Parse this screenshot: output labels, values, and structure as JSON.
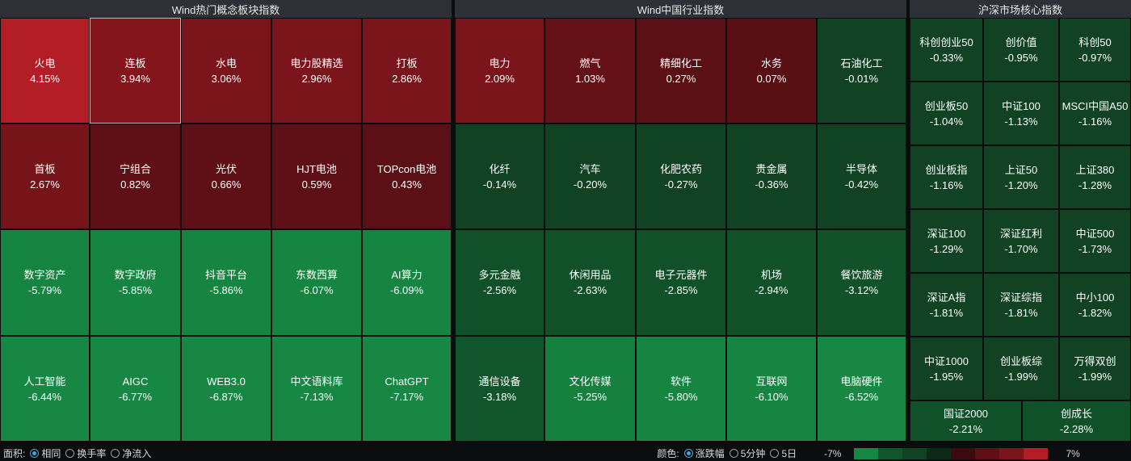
{
  "panels": [
    {
      "title": "Wind热门概念板块指数",
      "tiles": [
        {
          "name": "火电",
          "pct": "4.15%",
          "color": "#b31d25"
        },
        {
          "name": "连板",
          "pct": "3.94%",
          "color": "#84151c",
          "selected": true
        },
        {
          "name": "水电",
          "pct": "3.06%",
          "color": "#7a151b"
        },
        {
          "name": "电力股精选",
          "pct": "2.96%",
          "color": "#7a151b"
        },
        {
          "name": "打板",
          "pct": "2.86%",
          "color": "#7a151b"
        },
        {
          "name": "首板",
          "pct": "2.67%",
          "color": "#761419"
        },
        {
          "name": "宁组合",
          "pct": "0.82%",
          "color": "#5e1016"
        },
        {
          "name": "光伏",
          "pct": "0.66%",
          "color": "#5e1016"
        },
        {
          "name": "HJT电池",
          "pct": "0.59%",
          "color": "#5e1016"
        },
        {
          "name": "TOPcon电池",
          "pct": "0.43%",
          "color": "#5c1015"
        },
        {
          "name": "数字资产",
          "pct": "-5.79%",
          "color": "#168541"
        },
        {
          "name": "数字政府",
          "pct": "-5.85%",
          "color": "#168541"
        },
        {
          "name": "抖音平台",
          "pct": "-5.86%",
          "color": "#168541"
        },
        {
          "name": "东数西算",
          "pct": "-6.07%",
          "color": "#168541"
        },
        {
          "name": "AI算力",
          "pct": "-6.09%",
          "color": "#168541"
        },
        {
          "name": "人工智能",
          "pct": "-6.44%",
          "color": "#178843"
        },
        {
          "name": "AIGC",
          "pct": "-6.77%",
          "color": "#178843"
        },
        {
          "name": "WEB3.0",
          "pct": "-6.87%",
          "color": "#178843"
        },
        {
          "name": "中文语料库",
          "pct": "-7.13%",
          "color": "#178843"
        },
        {
          "name": "ChatGPT",
          "pct": "-7.17%",
          "color": "#178843"
        }
      ]
    },
    {
      "title": "Wind中国行业指数",
      "tiles": [
        {
          "name": "电力",
          "pct": "2.09%",
          "color": "#7a151b"
        },
        {
          "name": "燃气",
          "pct": "1.03%",
          "color": "#641117"
        },
        {
          "name": "精细化工",
          "pct": "0.27%",
          "color": "#5a1014"
        },
        {
          "name": "水务",
          "pct": "0.07%",
          "color": "#581014"
        },
        {
          "name": "石油化工",
          "pct": "-0.01%",
          "color": "#104223"
        },
        {
          "name": "化纤",
          "pct": "-0.14%",
          "color": "#104223"
        },
        {
          "name": "汽车",
          "pct": "-0.20%",
          "color": "#104223"
        },
        {
          "name": "化肥农药",
          "pct": "-0.27%",
          "color": "#104223"
        },
        {
          "name": "贵金属",
          "pct": "-0.36%",
          "color": "#104223"
        },
        {
          "name": "半导体",
          "pct": "-0.42%",
          "color": "#104223"
        },
        {
          "name": "多元金融",
          "pct": "-2.56%",
          "color": "#10512a"
        },
        {
          "name": "休闲用品",
          "pct": "-2.63%",
          "color": "#10512a"
        },
        {
          "name": "电子元器件",
          "pct": "-2.85%",
          "color": "#10512a"
        },
        {
          "name": "机场",
          "pct": "-2.94%",
          "color": "#10512a"
        },
        {
          "name": "餐饮旅游",
          "pct": "-3.12%",
          "color": "#11522b"
        },
        {
          "name": "通信设备",
          "pct": "-3.18%",
          "color": "#11552c"
        },
        {
          "name": "文化传媒",
          "pct": "-5.25%",
          "color": "#16803f"
        },
        {
          "name": "软件",
          "pct": "-5.80%",
          "color": "#168541"
        },
        {
          "name": "互联网",
          "pct": "-6.10%",
          "color": "#168541"
        },
        {
          "name": "电脑硬件",
          "pct": "-6.52%",
          "color": "#178843"
        }
      ]
    },
    {
      "title": "沪深市场核心指数",
      "tiles": [
        {
          "name": "科创创业50",
          "pct": "-0.33%",
          "color": "#104223"
        },
        {
          "name": "创价值",
          "pct": "-0.95%",
          "color": "#104223"
        },
        {
          "name": "科创50",
          "pct": "-0.97%",
          "color": "#104223"
        },
        {
          "name": "创业板50",
          "pct": "-1.04%",
          "color": "#104223"
        },
        {
          "name": "中证100",
          "pct": "-1.13%",
          "color": "#104223"
        },
        {
          "name": "MSCI中国A50",
          "pct": "-1.16%",
          "color": "#104223"
        },
        {
          "name": "创业板指",
          "pct": "-1.16%",
          "color": "#104223"
        },
        {
          "name": "上证50",
          "pct": "-1.20%",
          "color": "#104223"
        },
        {
          "name": "上证380",
          "pct": "-1.28%",
          "color": "#104223"
        },
        {
          "name": "深证100",
          "pct": "-1.29%",
          "color": "#104223"
        },
        {
          "name": "深证红利",
          "pct": "-1.70%",
          "color": "#104223"
        },
        {
          "name": "中证500",
          "pct": "-1.73%",
          "color": "#104223"
        },
        {
          "name": "深证A指",
          "pct": "-1.81%",
          "color": "#104223"
        },
        {
          "name": "深证综指",
          "pct": "-1.81%",
          "color": "#104223"
        },
        {
          "name": "中小100",
          "pct": "-1.82%",
          "color": "#104223"
        },
        {
          "name": "中证1000",
          "pct": "-1.95%",
          "color": "#104223"
        },
        {
          "name": "创业板综",
          "pct": "-1.99%",
          "color": "#104223"
        },
        {
          "name": "万得双创",
          "pct": "-1.99%",
          "color": "#104223"
        },
        {
          "name": "国证2000",
          "pct": "-2.21%",
          "color": "#10512a"
        },
        {
          "name": "创成长",
          "pct": "-2.28%",
          "color": "#10512a"
        }
      ]
    }
  ],
  "bottom": {
    "area_label": "面积:",
    "area_options": [
      {
        "label": "相同",
        "checked": true
      },
      {
        "label": "换手率",
        "checked": false
      },
      {
        "label": "净流入",
        "checked": false
      }
    ],
    "color_label": "颜色:",
    "color_options": [
      {
        "label": "涨跌幅",
        "checked": true
      },
      {
        "label": "5分钟",
        "checked": false
      },
      {
        "label": "5日",
        "checked": false
      }
    ],
    "legend_min": "-7%",
    "legend_max": "7%",
    "legend_colors": [
      "#178843",
      "#11552c",
      "#104223",
      "#0d2a19",
      "#3d0b0f",
      "#5e1016",
      "#7a151b",
      "#b31d25"
    ]
  }
}
